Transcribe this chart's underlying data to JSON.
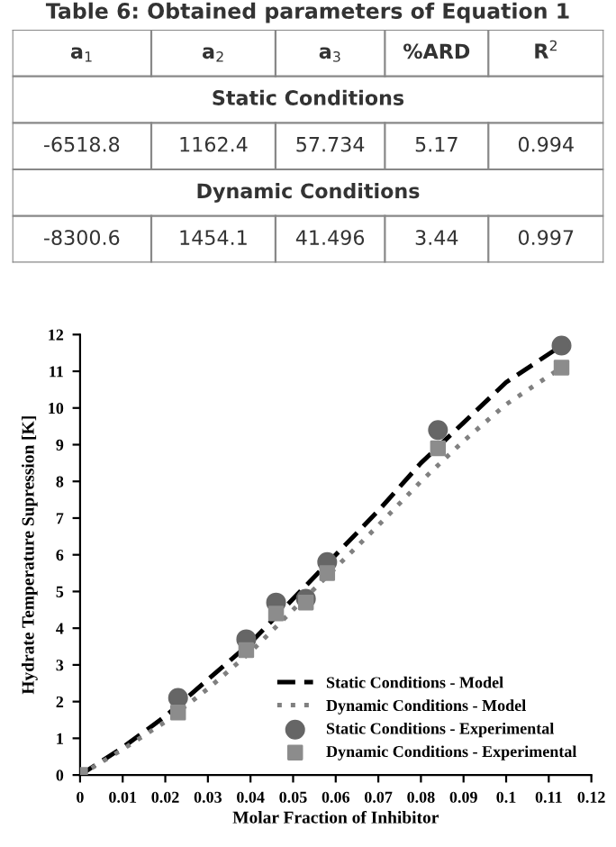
{
  "chart_data": [
    {
      "type": "other",
      "title": "Table 6: Obtained parameters of Equation 1",
      "annotations": [
        "a$_{1}$",
        "a$_{2}$",
        "a$_{3}$",
        "%ARD",
        "R$^{2}$",
        "Static Conditions",
        "-6518.8",
        "1162.4",
        "57.734",
        "5.17",
        "0.994",
        "Dynamic Conditions",
        "-8300.6",
        "1454.1",
        "41.496",
        "3.44",
        "0.997"
      ]
    },
    {
      "type": "line",
      "xlabel": "Molar Fraction of Inhibitor",
      "ylabel": "Hydrate Temperature Supression [K]",
      "xlim": [
        0,
        0.12
      ],
      "xticks": [
        0,
        0.01,
        0.02,
        0.03,
        0.04,
        0.05,
        0.06,
        0.07,
        0.08,
        0.09,
        0.1,
        0.11,
        0.12
      ],
      "ylim": [
        0,
        12
      ],
      "yticks": [
        0,
        1,
        2,
        3,
        4,
        5,
        6,
        7,
        8,
        9,
        10,
        11,
        12
      ],
      "grid": false,
      "legend": "bottom right",
      "series": [
        {
          "name": "Static Conditions - Model",
          "type": "line",
          "line_style": "dashed",
          "marker": "none",
          "color": "#000000",
          "x": [
            0,
            0.01,
            0.02,
            0.03,
            0.04,
            0.05,
            0.06,
            0.07,
            0.08,
            0.09,
            0.1,
            0.113
          ],
          "values": [
            0,
            0.75,
            1.6,
            2.6,
            3.6,
            4.8,
            6.0,
            7.2,
            8.5,
            9.6,
            10.7,
            11.7
          ]
        },
        {
          "name": "Dynamic Conditions - Model",
          "type": "line",
          "line_style": "dotted",
          "marker": "none",
          "color": "#808080",
          "x": [
            0,
            0.01,
            0.02,
            0.03,
            0.04,
            0.05,
            0.06,
            0.07,
            0.08,
            0.09,
            0.1,
            0.113
          ],
          "values": [
            0,
            0.7,
            1.45,
            2.35,
            3.35,
            4.5,
            5.65,
            6.8,
            8.0,
            9.1,
            10.1,
            11.1
          ]
        },
        {
          "name": "Static Conditions - Experimental",
          "type": "scatter",
          "marker": "circle",
          "color": "#666666",
          "x": [
            0.023,
            0.039,
            0.046,
            0.053,
            0.058,
            0.084,
            0.113
          ],
          "values": [
            2.1,
            3.7,
            4.7,
            4.8,
            5.8,
            9.4,
            11.7
          ]
        },
        {
          "name": "Dynamic Conditions - Experimental",
          "type": "scatter",
          "marker": "square",
          "color": "#8c8c8c",
          "x": [
            0,
            0.023,
            0.039,
            0.046,
            0.053,
            0.058,
            0.084,
            0.113
          ],
          "values": [
            0,
            1.7,
            3.4,
            4.4,
            4.7,
            5.5,
            8.9,
            11.1
          ]
        }
      ]
    }
  ]
}
